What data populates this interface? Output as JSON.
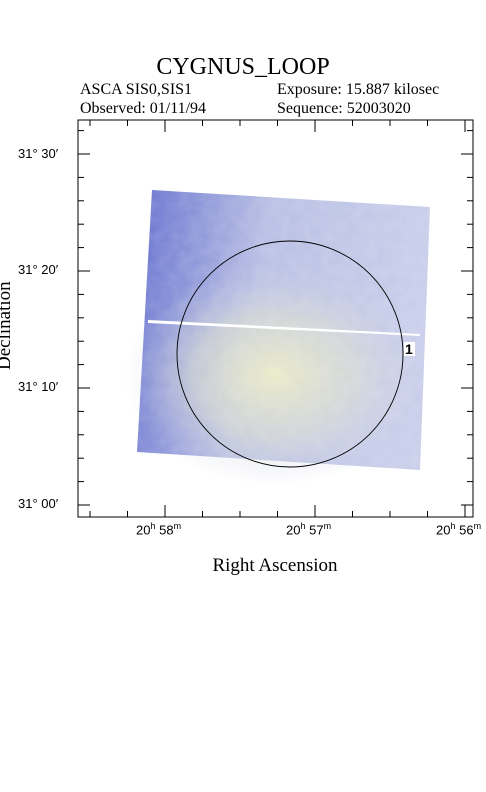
{
  "header": {
    "title": "CYGNUS_LOOP",
    "instrument": "ASCA SIS0,SIS1",
    "exposure": "Exposure: 15.887 kilosec",
    "observed": "Observed: 01/11/94",
    "sequence": "Sequence: 52003020"
  },
  "axes": {
    "x_title": "Right Ascension",
    "y_title": "Declination",
    "x_ticks": [
      {
        "h": "20",
        "m": "58"
      },
      {
        "h": "20",
        "m": "57"
      },
      {
        "h": "20",
        "m": "56"
      }
    ],
    "y_ticks": [
      "31° 30′",
      "31° 20′",
      "31° 10′",
      "31° 00′"
    ]
  },
  "image": {
    "region_label": "1",
    "colors": {
      "cold": "#5c68cc",
      "mid": "#b9c0e4",
      "warm": "#e6e8c2"
    }
  }
}
